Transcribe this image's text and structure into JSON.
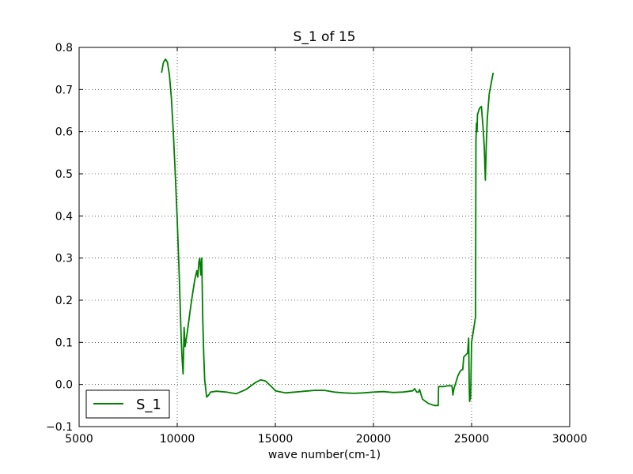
{
  "chart_data": {
    "type": "line",
    "title": "S_1 of 15",
    "xlabel": "wave number(cm-1)",
    "ylabel": "",
    "xlim": [
      5000,
      30000
    ],
    "ylim": [
      -0.1,
      0.8
    ],
    "xticks": [
      5000,
      10000,
      15000,
      20000,
      25000,
      30000
    ],
    "xtick_labels": [
      "5000",
      "10000",
      "15000",
      "20000",
      "25000",
      "30000"
    ],
    "yticks": [
      -0.1,
      0.0,
      0.1,
      0.2,
      0.3,
      0.4,
      0.5,
      0.6,
      0.7,
      0.8
    ],
    "ytick_labels": [
      "−0.1",
      "0.0",
      "0.1",
      "0.2",
      "0.3",
      "0.4",
      "0.5",
      "0.6",
      "0.7",
      "0.8"
    ],
    "grid": true,
    "legend_position": "bottom-left",
    "colors": {
      "series": "#007f00",
      "axes": "#000000",
      "background": "#ffffff"
    },
    "series": [
      {
        "name": "S_1",
        "x": [
          9200,
          9300,
          9400,
          9500,
          9600,
          9700,
          9800,
          9900,
          10000,
          10100,
          10200,
          10250,
          10300,
          10350,
          10400,
          10500,
          10600,
          10700,
          10800,
          10900,
          11000,
          11050,
          11100,
          11150,
          11200,
          11250,
          11300,
          11350,
          11400,
          11500,
          11600,
          11700,
          12000,
          12500,
          13000,
          13500,
          14000,
          14250,
          14500,
          14800,
          15000,
          15500,
          16000,
          16500,
          17000,
          17500,
          18000,
          18500,
          19000,
          19500,
          20000,
          20500,
          21000,
          21500,
          22000,
          22100,
          22200,
          22300,
          22350,
          22400,
          22500,
          22800,
          23100,
          23300,
          23320,
          23400,
          23600,
          23800,
          24000,
          24050,
          24100,
          24200,
          24300,
          24400,
          24500,
          24550,
          24600,
          24700,
          24800,
          24850,
          24880,
          24900,
          24950,
          25000,
          25100,
          25200,
          25220,
          25250,
          25280,
          25300,
          25400,
          25500,
          25600,
          25650,
          25700,
          25750,
          25800,
          25900,
          26000,
          26100
        ],
        "y": [
          0.74,
          0.765,
          0.772,
          0.765,
          0.735,
          0.68,
          0.6,
          0.5,
          0.39,
          0.26,
          0.11,
          0.06,
          0.025,
          0.135,
          0.09,
          0.12,
          0.155,
          0.19,
          0.22,
          0.25,
          0.27,
          0.255,
          0.29,
          0.3,
          0.26,
          0.3,
          0.16,
          0.07,
          0.01,
          -0.03,
          -0.025,
          -0.018,
          -0.016,
          -0.018,
          -0.022,
          -0.012,
          0.005,
          0.011,
          0.008,
          -0.005,
          -0.015,
          -0.02,
          -0.018,
          -0.016,
          -0.014,
          -0.014,
          -0.018,
          -0.02,
          -0.021,
          -0.02,
          -0.018,
          -0.017,
          -0.019,
          -0.018,
          -0.015,
          -0.01,
          -0.018,
          -0.018,
          -0.012,
          -0.02,
          -0.035,
          -0.045,
          -0.05,
          -0.05,
          -0.005,
          -0.005,
          -0.005,
          -0.003,
          -0.003,
          -0.025,
          -0.01,
          0.005,
          0.02,
          0.03,
          0.035,
          0.035,
          0.065,
          0.07,
          0.075,
          0.11,
          0.0,
          -0.04,
          -0.03,
          0.1,
          0.13,
          0.16,
          0.58,
          0.62,
          0.6,
          0.64,
          0.655,
          0.66,
          0.6,
          0.56,
          0.485,
          0.57,
          0.63,
          0.69,
          0.715,
          0.74
        ]
      }
    ]
  }
}
